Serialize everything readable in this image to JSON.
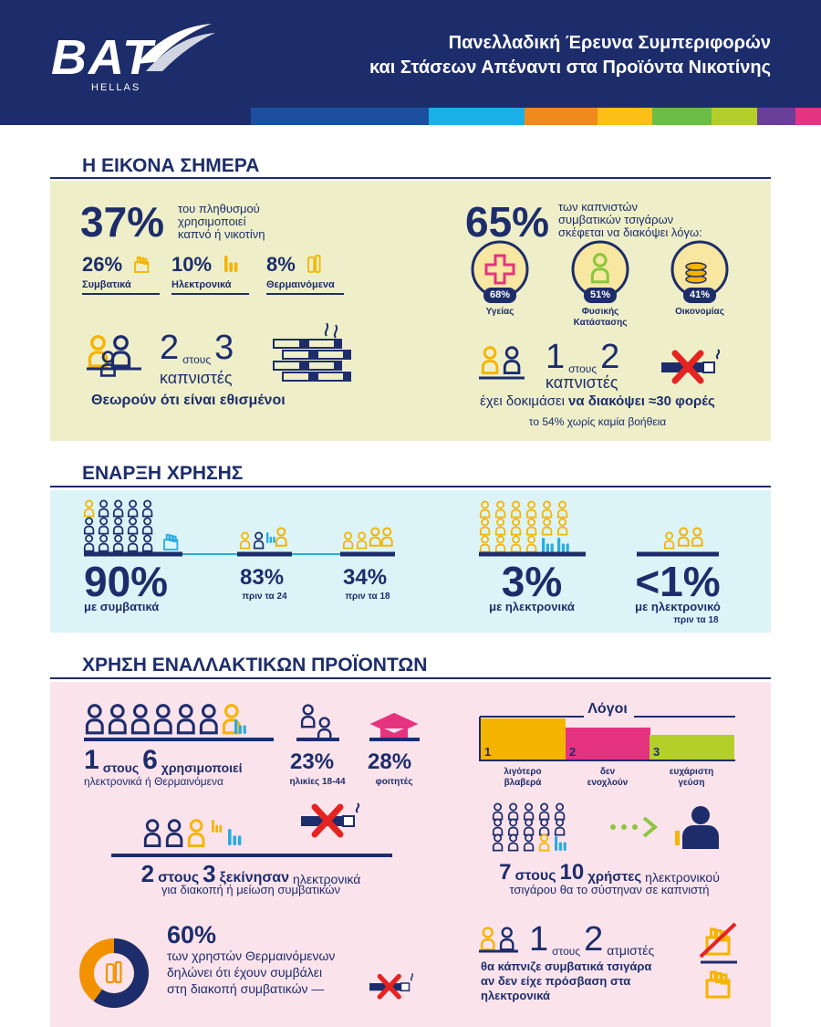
{
  "header": {
    "logo": "BAT",
    "logo_sub": "HELLAS",
    "title": [
      "Πανελλαδική Έρευνα Συμπεριφορών",
      "και Στάσεων Απέναντι στα Προϊόντα Νικοτίνης"
    ]
  },
  "sections": [
    {
      "title": "Η ΕΙΚΟΝΑ ΣΗΜΕΡΑ",
      "population": {
        "value": "37%",
        "text": [
          "του πληθυσμού",
          "χρησιμοποιεί",
          "καπνό ή νικοτίνη"
        ],
        "breakdown": [
          {
            "value": "26%",
            "label": "Συμβατικά"
          },
          {
            "value": "10%",
            "label": "Ηλεκτρονικά"
          },
          {
            "value": "8%",
            "label": "Θερμαινόμενα"
          }
        ]
      },
      "addicted": {
        "numerator": "2",
        "word": "στους",
        "denominator": "3",
        "group": "καπνιστές",
        "text": "Θεωρούν ότι είναι εθισμένοι"
      },
      "quit_intent": {
        "value": "65%",
        "text": [
          "των καπνιστών",
          "συμβατικών τσιγάρων",
          "σκέφεται να διακόψει λόγω:"
        ],
        "reasons": [
          {
            "value": "68%",
            "label": [
              "Υγείας"
            ]
          },
          {
            "value": "51%",
            "label": [
              "Φυσικής",
              "Κατάστασης"
            ]
          },
          {
            "value": "41%",
            "label": [
              "Οικονομίας"
            ]
          }
        ]
      },
      "quit_attempts": {
        "numerator": "1",
        "word": "στους",
        "denominator": "2",
        "group": "καπνιστές",
        "text": "έχει δοκιμάσει",
        "text_bold": "να διακόψει ≈30 φορές",
        "note": "το 54% χωρίς καμία βοήθεια"
      }
    },
    {
      "title": "ΕΝΑΡΞΗ ΧΡΗΣΗΣ",
      "stats": [
        {
          "value": "90%",
          "label": "με συμβατικά"
        },
        {
          "value": "83%",
          "label": "πριν τα 24"
        },
        {
          "value": "34%",
          "label": "πριν τα 18"
        },
        {
          "value": "3%",
          "label": "με ηλεκτρονικά"
        },
        {
          "value": "<1%",
          "label": "με ηλεκτρονικό",
          "note": "πριν τα 18"
        }
      ]
    },
    {
      "title": "ΧΡΗΣΗ ΕΝΑΛΛΑΚΤΙΚΩΝ ΠΡΟΪΟΝΤΩΝ",
      "alt_users": {
        "numerator": "1",
        "word": "στους",
        "denominator": "6",
        "verb": "χρησιμοποιεί",
        "text": "ηλεκτρονικά ή Θερμαινόμενα"
      },
      "groups": [
        {
          "value": "23%",
          "label": "ηλικίες 18-44"
        },
        {
          "value": "28%",
          "label": "φοιτητές"
        }
      ],
      "reasons": {
        "title": "Λόγοι",
        "items": [
          {
            "rank": "1",
            "label": [
              "λιγότερο",
              "βλαβερά"
            ]
          },
          {
            "rank": "2",
            "label": [
              "δεν",
              "ενοχλούν"
            ]
          },
          {
            "rank": "3",
            "label": [
              "ευχάριστη",
              "γεύση"
            ]
          }
        ]
      },
      "started": {
        "numerator": "2",
        "word": "στους",
        "denominator": "3",
        "verb": "ξεκίνησαν",
        "text": "ηλεκτρονικά",
        "line2": "για διακοπή ή μείωση συμβατικών"
      },
      "recommend": {
        "numerator": "7",
        "word": "στους",
        "denominator": "10",
        "verb": "χρήστες",
        "text": "ηλεκτρονικού",
        "line2": "τσιγάρου θα το σύστηναν σε καπνιστή"
      },
      "heated": {
        "value": 60,
        "label": "60%",
        "text": [
          "των χρηστών Θερμαινόμενων",
          "δηλώνει ότι έχουν συμβάλει",
          "στη διακοπή συμβατικών —"
        ]
      },
      "vapers": {
        "numerator": "1",
        "word": "στους",
        "denominator": "2",
        "group": "ατμιστές",
        "text": [
          "θα κάπνιζε συμβατικά τσιγάρα",
          "αν δεν είχε πρόσβαση στα",
          "ηλεκτρονικά"
        ]
      }
    }
  ]
}
